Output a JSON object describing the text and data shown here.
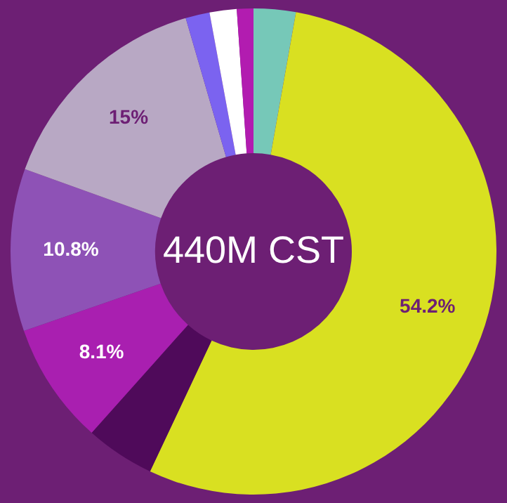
{
  "chart_data": {
    "type": "donut",
    "categories": [
      null,
      null,
      null,
      null,
      null,
      null,
      null,
      null,
      null
    ],
    "values": [
      2.8,
      54.2,
      4.6,
      8.1,
      10.8,
      15,
      1.6,
      1.8,
      1.1
    ],
    "value_labels": [
      null,
      "54.2%",
      null,
      "8.1%",
      "10.8%",
      "15%",
      null,
      null,
      null
    ],
    "colors": [
      "#76c8b8",
      "#d9e021",
      "#4f0a5a",
      "#a91fb0",
      "#8e52b6",
      "#b8a8c4",
      "#7b63f0",
      "#ffffff",
      "#b21cb0"
    ],
    "annotations": [
      "440M CST"
    ]
  }
}
